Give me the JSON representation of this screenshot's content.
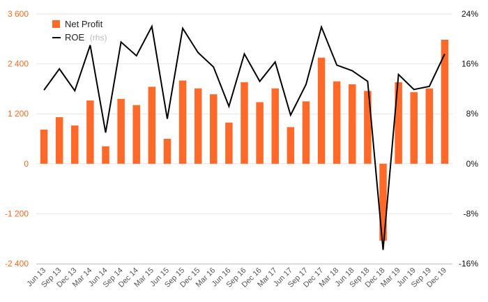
{
  "chart_data": {
    "type": "bar",
    "categories": [
      "Jun 13",
      "Sep 13",
      "Dec 13",
      "Mar 14",
      "Jun 14",
      "Sep 14",
      "Dec 14",
      "Mar 15",
      "Jun 15",
      "Sep 15",
      "Dec 15",
      "Mar 16",
      "Jun 16",
      "Sep 16",
      "Dec 16",
      "Mar 17",
      "Jun 17",
      "Sep 17",
      "Dec 17",
      "Mar 18",
      "Jun 18",
      "Sep 18",
      "Dec 18",
      "Mar 19",
      "Jun 19",
      "Sep 19",
      "Dec 19"
    ],
    "series": [
      {
        "name": "Net Profit",
        "type": "bar",
        "axis": "left",
        "color": "#ff6a2b",
        "values": [
          820,
          1120,
          920,
          1520,
          420,
          1560,
          1410,
          1850,
          600,
          2000,
          1810,
          1670,
          990,
          1960,
          1480,
          1810,
          880,
          1500,
          2550,
          1980,
          1910,
          1750,
          -1850,
          1960,
          1720,
          1810,
          2980
        ]
      },
      {
        "name": "ROE",
        "name_suffix": "(rhs)",
        "type": "line",
        "axis": "right",
        "color": "#000000",
        "values": [
          11.8,
          15.2,
          11.7,
          19.0,
          5.0,
          19.5,
          17.3,
          22.0,
          7.2,
          21.7,
          17.8,
          15.5,
          9.2,
          17.6,
          13.2,
          16.3,
          7.8,
          12.7,
          21.9,
          15.8,
          14.9,
          13.2,
          -13.8,
          14.3,
          11.9,
          12.4,
          17.6
        ]
      }
    ],
    "y_left": {
      "ylim": [
        -2400,
        3600
      ],
      "ticks": [
        -2400,
        -1200,
        0,
        1200,
        2400,
        3600
      ],
      "tick_labels": [
        "-2 400",
        "-1 200",
        "0",
        "1 200",
        "2 400",
        "3 600"
      ]
    },
    "y_right": {
      "ylim": [
        -16,
        24
      ],
      "ticks": [
        -16,
        -8,
        0,
        8,
        16,
        24
      ],
      "tick_labels": [
        "-16%",
        "-8%",
        "0%",
        "8%",
        "16%",
        "24%"
      ]
    },
    "grid": true,
    "legend_position": "top-left",
    "colors": {
      "bar": "#ff6a2b",
      "line": "#000000",
      "left_axis_text": "#f26b21",
      "grid": "#e6e6e6"
    }
  }
}
